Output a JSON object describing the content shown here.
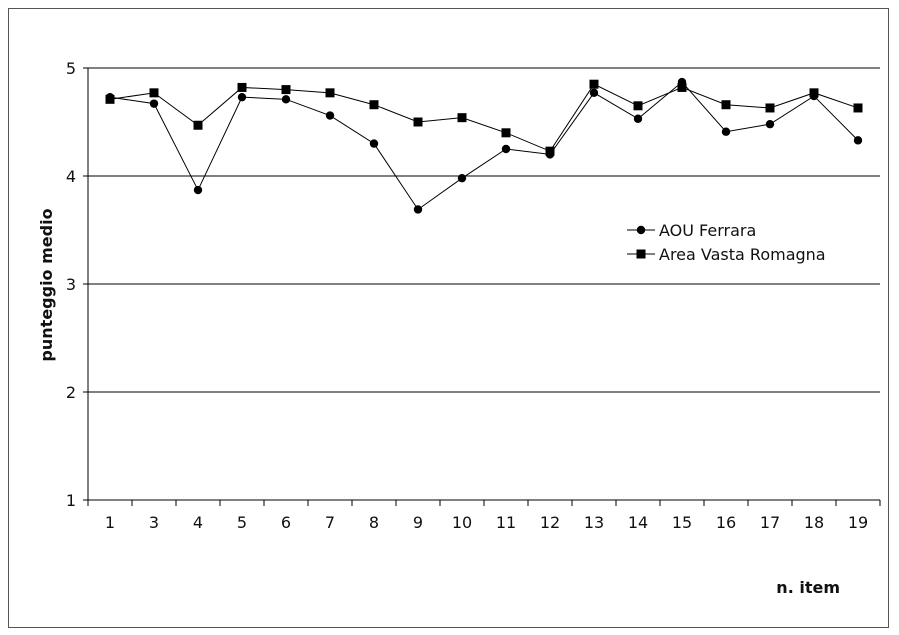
{
  "chart_data": {
    "type": "line",
    "title": "",
    "xlabel": "n. item",
    "ylabel": "punteggio medio",
    "categories": [
      "1",
      "3",
      "4",
      "5",
      "6",
      "7",
      "8",
      "9",
      "10",
      "11",
      "12",
      "13",
      "14",
      "15",
      "16",
      "17",
      "18",
      "19"
    ],
    "ylim": [
      1,
      5
    ],
    "yticks": [
      1,
      2,
      3,
      4,
      5
    ],
    "grid": true,
    "legend": "right",
    "series": [
      {
        "name": "AOU Ferrara",
        "marker": "circle",
        "values": [
          4.73,
          4.67,
          3.87,
          4.73,
          4.71,
          4.56,
          4.3,
          3.69,
          3.98,
          4.25,
          4.2,
          4.77,
          4.53,
          4.87,
          4.41,
          4.48,
          4.74,
          4.33
        ]
      },
      {
        "name": "Area Vasta Romagna",
        "marker": "square",
        "values": [
          4.71,
          4.77,
          4.47,
          4.82,
          4.8,
          4.77,
          4.66,
          4.5,
          4.54,
          4.4,
          4.23,
          4.85,
          4.65,
          4.82,
          4.66,
          4.63,
          4.77,
          4.63
        ]
      }
    ],
    "colors": {
      "line": "#000000",
      "grid": "#000000"
    }
  }
}
